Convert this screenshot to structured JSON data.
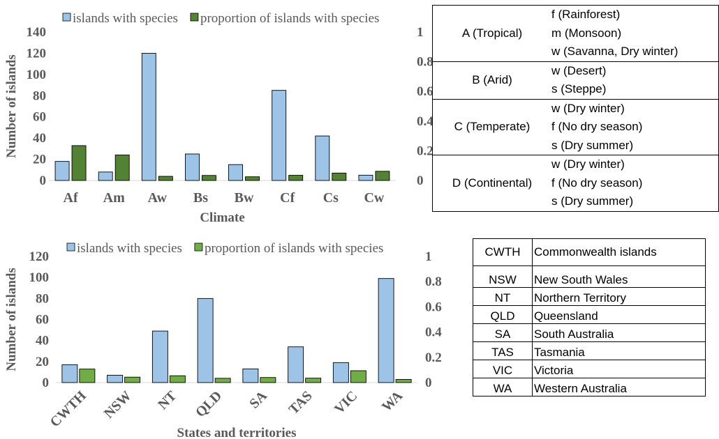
{
  "chart_data": [
    {
      "type": "bar",
      "xlabel": "Climate",
      "ylabel": "Number of islands",
      "ylim": [
        0,
        140
      ],
      "y_ticks": [
        "0",
        "20",
        "40",
        "60",
        "80",
        "100",
        "120",
        "140"
      ],
      "y2lim": [
        0,
        1
      ],
      "y2_ticks": [
        "0",
        "0.2",
        "0.4",
        "0.6",
        "0.8",
        "1"
      ],
      "categories": [
        "Af",
        "Am",
        "Aw",
        "Bs",
        "Bw",
        "Cf",
        "Cs",
        "Cw"
      ],
      "legend_position": "top",
      "series": [
        {
          "name": "islands with species",
          "axis": "left",
          "color": "#9dc3e6",
          "values": [
            18,
            8,
            120,
            25,
            15,
            85,
            42,
            5
          ]
        },
        {
          "name": "proportion of islands with species",
          "axis": "right",
          "color": "#548235",
          "values": [
            0.235,
            0.172,
            0.028,
            0.034,
            0.025,
            0.035,
            0.05,
            0.062
          ]
        }
      ]
    },
    {
      "type": "bar",
      "xlabel": "States and territories",
      "ylabel": "Number of islands",
      "ylim": [
        0,
        120
      ],
      "y_ticks": [
        "0",
        "20",
        "40",
        "60",
        "80",
        "100",
        "120"
      ],
      "y2lim": [
        0,
        1
      ],
      "y2_ticks": [
        "0",
        "0.2",
        "0.4",
        "0.6",
        "0.8",
        "1"
      ],
      "categories": [
        "CWTH",
        "NSW",
        "NT",
        "QLD",
        "SA",
        "TAS",
        "VIC",
        "WA"
      ],
      "legend_position": "top",
      "series": [
        {
          "name": "islands with species",
          "axis": "left",
          "color": "#9dc3e6",
          "values": [
            17,
            7,
            49,
            80,
            13,
            34,
            19,
            99
          ]
        },
        {
          "name": "proportion of islands with species",
          "axis": "right",
          "color": "#70ad47",
          "values": [
            0.107,
            0.043,
            0.054,
            0.034,
            0.04,
            0.035,
            0.094,
            0.025
          ]
        }
      ]
    }
  ],
  "climate_table": [
    {
      "major": "A (Tropical)",
      "subs": [
        "f (Rainforest)",
        "m (Monsoon)",
        "w (Savanna, Dry winter)"
      ]
    },
    {
      "major": "B (Arid)",
      "subs": [
        "w (Desert)",
        "s (Steppe)"
      ]
    },
    {
      "major": "C (Temperate)",
      "subs": [
        "w (Dry winter)",
        "f (No dry season)",
        "s (Dry summer)"
      ]
    },
    {
      "major": "D (Continental)",
      "subs": [
        "w (Dry winter)",
        "f (No dry season)",
        "s (Dry summer)"
      ]
    }
  ],
  "state_table": [
    {
      "abbr": "CWTH",
      "name": "Commonwealth islands"
    },
    {
      "abbr": "NSW",
      "name": "New South Wales"
    },
    {
      "abbr": "NT",
      "name": "Northern Territory"
    },
    {
      "abbr": "QLD",
      "name": "Queensland"
    },
    {
      "abbr": "SA",
      "name": "South Australia"
    },
    {
      "abbr": "TAS",
      "name": "Tasmania"
    },
    {
      "abbr": "VIC",
      "name": "Victoria"
    },
    {
      "abbr": "WA",
      "name": "Western Australia"
    }
  ]
}
